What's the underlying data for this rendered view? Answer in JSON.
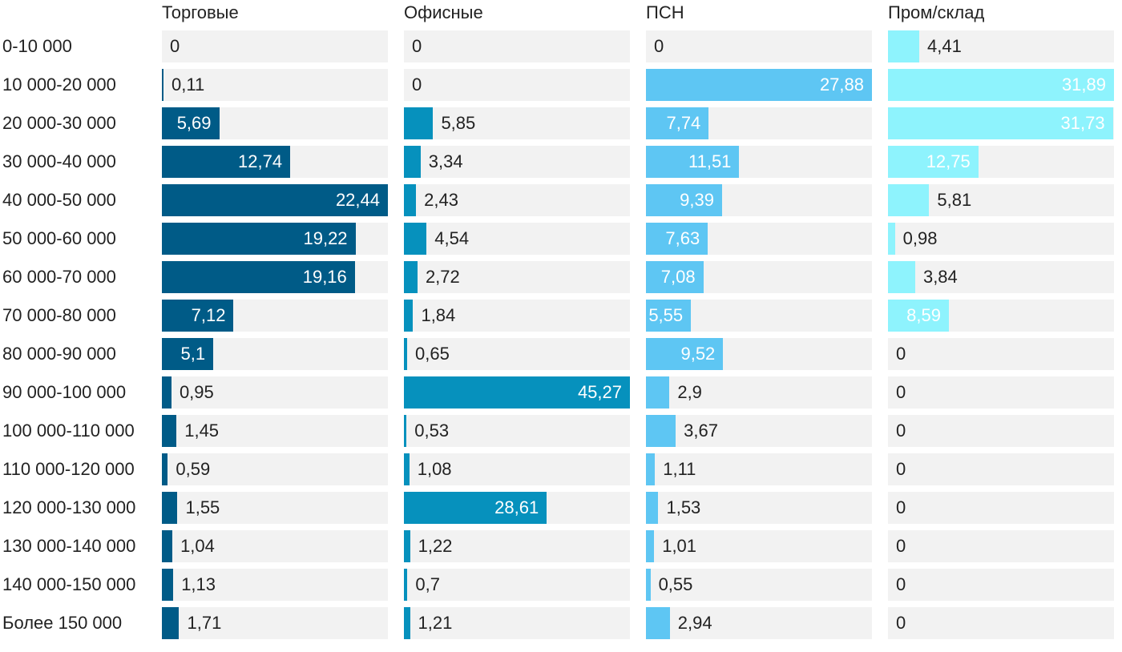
{
  "chart_data": {
    "type": "bar",
    "orientation": "horizontal",
    "layout": "small-multiples",
    "categories": [
      "0-10 000",
      "10 000-20 000",
      "20 000-30 000",
      "30 000-40 000",
      "40 000-50 000",
      "50 000-60 000",
      "60 000-70 000",
      "70 000-80 000",
      "80 000-90 000",
      "90 000-100 000",
      "100 000-110 000",
      "110 000-120 000",
      "120 000-130 000",
      "130 000-140 000",
      "140 000-150 000",
      "Более 150 000"
    ],
    "series": [
      {
        "name": "Торговые",
        "color": "#005b87",
        "max": 22.44,
        "values": [
          0,
          0.11,
          5.69,
          12.74,
          22.44,
          19.22,
          19.16,
          7.12,
          5.1,
          0.95,
          1.45,
          0.59,
          1.55,
          1.04,
          1.13,
          1.71
        ],
        "labels": [
          "0",
          "0,11",
          "5,69",
          "12,74",
          "22,44",
          "19,22",
          "19,16",
          "7,12",
          "5,1",
          "0,95",
          "1,45",
          "0,59",
          "1,55",
          "1,04",
          "1,13",
          "1,71"
        ]
      },
      {
        "name": "Офисные",
        "color": "#0691bd",
        "max": 45.27,
        "values": [
          0,
          0,
          5.85,
          3.34,
          2.43,
          4.54,
          2.72,
          1.84,
          0.65,
          45.27,
          0.53,
          1.08,
          28.61,
          1.22,
          0.7,
          1.21
        ],
        "labels": [
          "0",
          "0",
          "5,85",
          "3,34",
          "2,43",
          "4,54",
          "2,72",
          "1,84",
          "0,65",
          "45,27",
          "0,53",
          "1,08",
          "28,61",
          "1,22",
          "0,7",
          "1,21"
        ]
      },
      {
        "name": "ПСН",
        "color": "#5ec6f3",
        "max": 27.88,
        "values": [
          0,
          27.88,
          7.74,
          11.51,
          9.39,
          7.63,
          7.08,
          5.55,
          9.52,
          2.9,
          3.67,
          1.11,
          1.53,
          1.01,
          0.55,
          2.94
        ],
        "labels": [
          "0",
          "27,88",
          "7,74",
          "11,51",
          "9,39",
          "7,63",
          "7,08",
          "5,55",
          "9,52",
          "2,9",
          "3,67",
          "1,11",
          "1,53",
          "1,01",
          "0,55",
          "2,94"
        ]
      },
      {
        "name": "Пром/склад",
        "color": "#8ef3fd",
        "max": 31.89,
        "values": [
          4.41,
          31.89,
          31.73,
          12.75,
          5.81,
          0.98,
          3.84,
          8.59,
          0,
          0,
          0,
          0,
          0,
          0,
          0,
          0
        ],
        "labels": [
          "4,41",
          "31,89",
          "31,73",
          "12,75",
          "5,81",
          "0,98",
          "3,84",
          "8,59",
          "0",
          "0",
          "0",
          "0",
          "0",
          "0",
          "0",
          "0"
        ]
      }
    ],
    "inside_label_color": "#ffffff",
    "outside_label_color": "#222222",
    "track_color": "#f2f2f2",
    "grid": false,
    "legend": "none"
  }
}
